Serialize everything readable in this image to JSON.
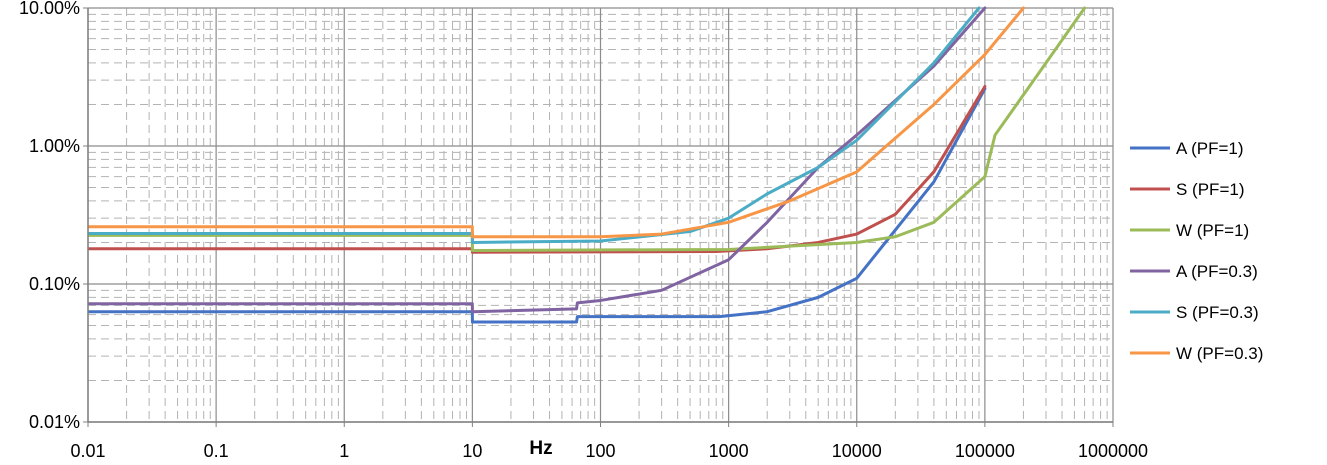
{
  "chart_data": {
    "type": "line",
    "x_scale": "log",
    "y_scale": "log",
    "xlabel": "Hz",
    "ylabel": "",
    "xlim": [
      0.01,
      1000000
    ],
    "ylim": [
      0.01,
      10
    ],
    "x_tick_labels": [
      "0.01",
      "0.1",
      "1",
      "10",
      "100",
      "1000",
      "10000",
      "100000",
      "1000000"
    ],
    "y_tick_labels": [
      "0.01%",
      "0.10%",
      "1.00%",
      "10.00%"
    ],
    "grid": "major solid, minor dashed",
    "legend_position": "right",
    "series": [
      {
        "name": "A (PF=1)",
        "color": "#4472C4",
        "points": [
          [
            0.01,
            0.063
          ],
          [
            9.99,
            0.063
          ],
          [
            10.01,
            0.053
          ],
          [
            65,
            0.053
          ],
          [
            66,
            0.058
          ],
          [
            850,
            0.058
          ],
          [
            2000,
            0.063
          ],
          [
            5000,
            0.08
          ],
          [
            10000,
            0.11
          ],
          [
            40000,
            0.55
          ],
          [
            100000,
            2.6
          ]
        ]
      },
      {
        "name": "S (PF=1)",
        "color": "#C0504D",
        "points": [
          [
            0.01,
            0.18
          ],
          [
            9.99,
            0.18
          ],
          [
            10.01,
            0.17
          ],
          [
            800,
            0.172
          ],
          [
            2000,
            0.18
          ],
          [
            5000,
            0.2
          ],
          [
            10000,
            0.23
          ],
          [
            20000,
            0.32
          ],
          [
            40000,
            0.65
          ],
          [
            100000,
            2.7
          ]
        ]
      },
      {
        "name": "W (PF=1)",
        "color": "#9BBB59",
        "points": [
          [
            0.01,
            0.225
          ],
          [
            9.99,
            0.225
          ],
          [
            10.01,
            0.175
          ],
          [
            1000,
            0.178
          ],
          [
            3000,
            0.188
          ],
          [
            10000,
            0.2
          ],
          [
            20000,
            0.22
          ],
          [
            40000,
            0.28
          ],
          [
            100000,
            0.6
          ],
          [
            120000,
            1.2
          ],
          [
            300000,
            4
          ],
          [
            600000,
            10
          ]
        ]
      },
      {
        "name": "A (PF=0.3)",
        "color": "#8064A2",
        "points": [
          [
            0.01,
            0.072
          ],
          [
            9.99,
            0.072
          ],
          [
            10.01,
            0.063
          ],
          [
            65,
            0.066
          ],
          [
            66,
            0.073
          ],
          [
            100,
            0.076
          ],
          [
            300,
            0.09
          ],
          [
            1000,
            0.15
          ],
          [
            2000,
            0.28
          ],
          [
            5000,
            0.7
          ],
          [
            10000,
            1.2
          ],
          [
            40000,
            3.8
          ],
          [
            100000,
            10
          ]
        ]
      },
      {
        "name": "S (PF=0.3)",
        "color": "#4BACC6",
        "points": [
          [
            0.01,
            0.232
          ],
          [
            9.99,
            0.232
          ],
          [
            10.01,
            0.2
          ],
          [
            100,
            0.205
          ],
          [
            500,
            0.24
          ],
          [
            1000,
            0.3
          ],
          [
            2000,
            0.45
          ],
          [
            5000,
            0.7
          ],
          [
            10000,
            1.1
          ],
          [
            40000,
            4
          ],
          [
            90000,
            10
          ]
        ]
      },
      {
        "name": "W (PF=0.3)",
        "color": "#F79646",
        "points": [
          [
            0.01,
            0.26
          ],
          [
            9.99,
            0.26
          ],
          [
            10.01,
            0.22
          ],
          [
            100,
            0.22
          ],
          [
            300,
            0.23
          ],
          [
            1000,
            0.28
          ],
          [
            3000,
            0.4
          ],
          [
            10000,
            0.65
          ],
          [
            40000,
            2
          ],
          [
            100000,
            4.6
          ],
          [
            200000,
            10
          ]
        ]
      }
    ]
  }
}
